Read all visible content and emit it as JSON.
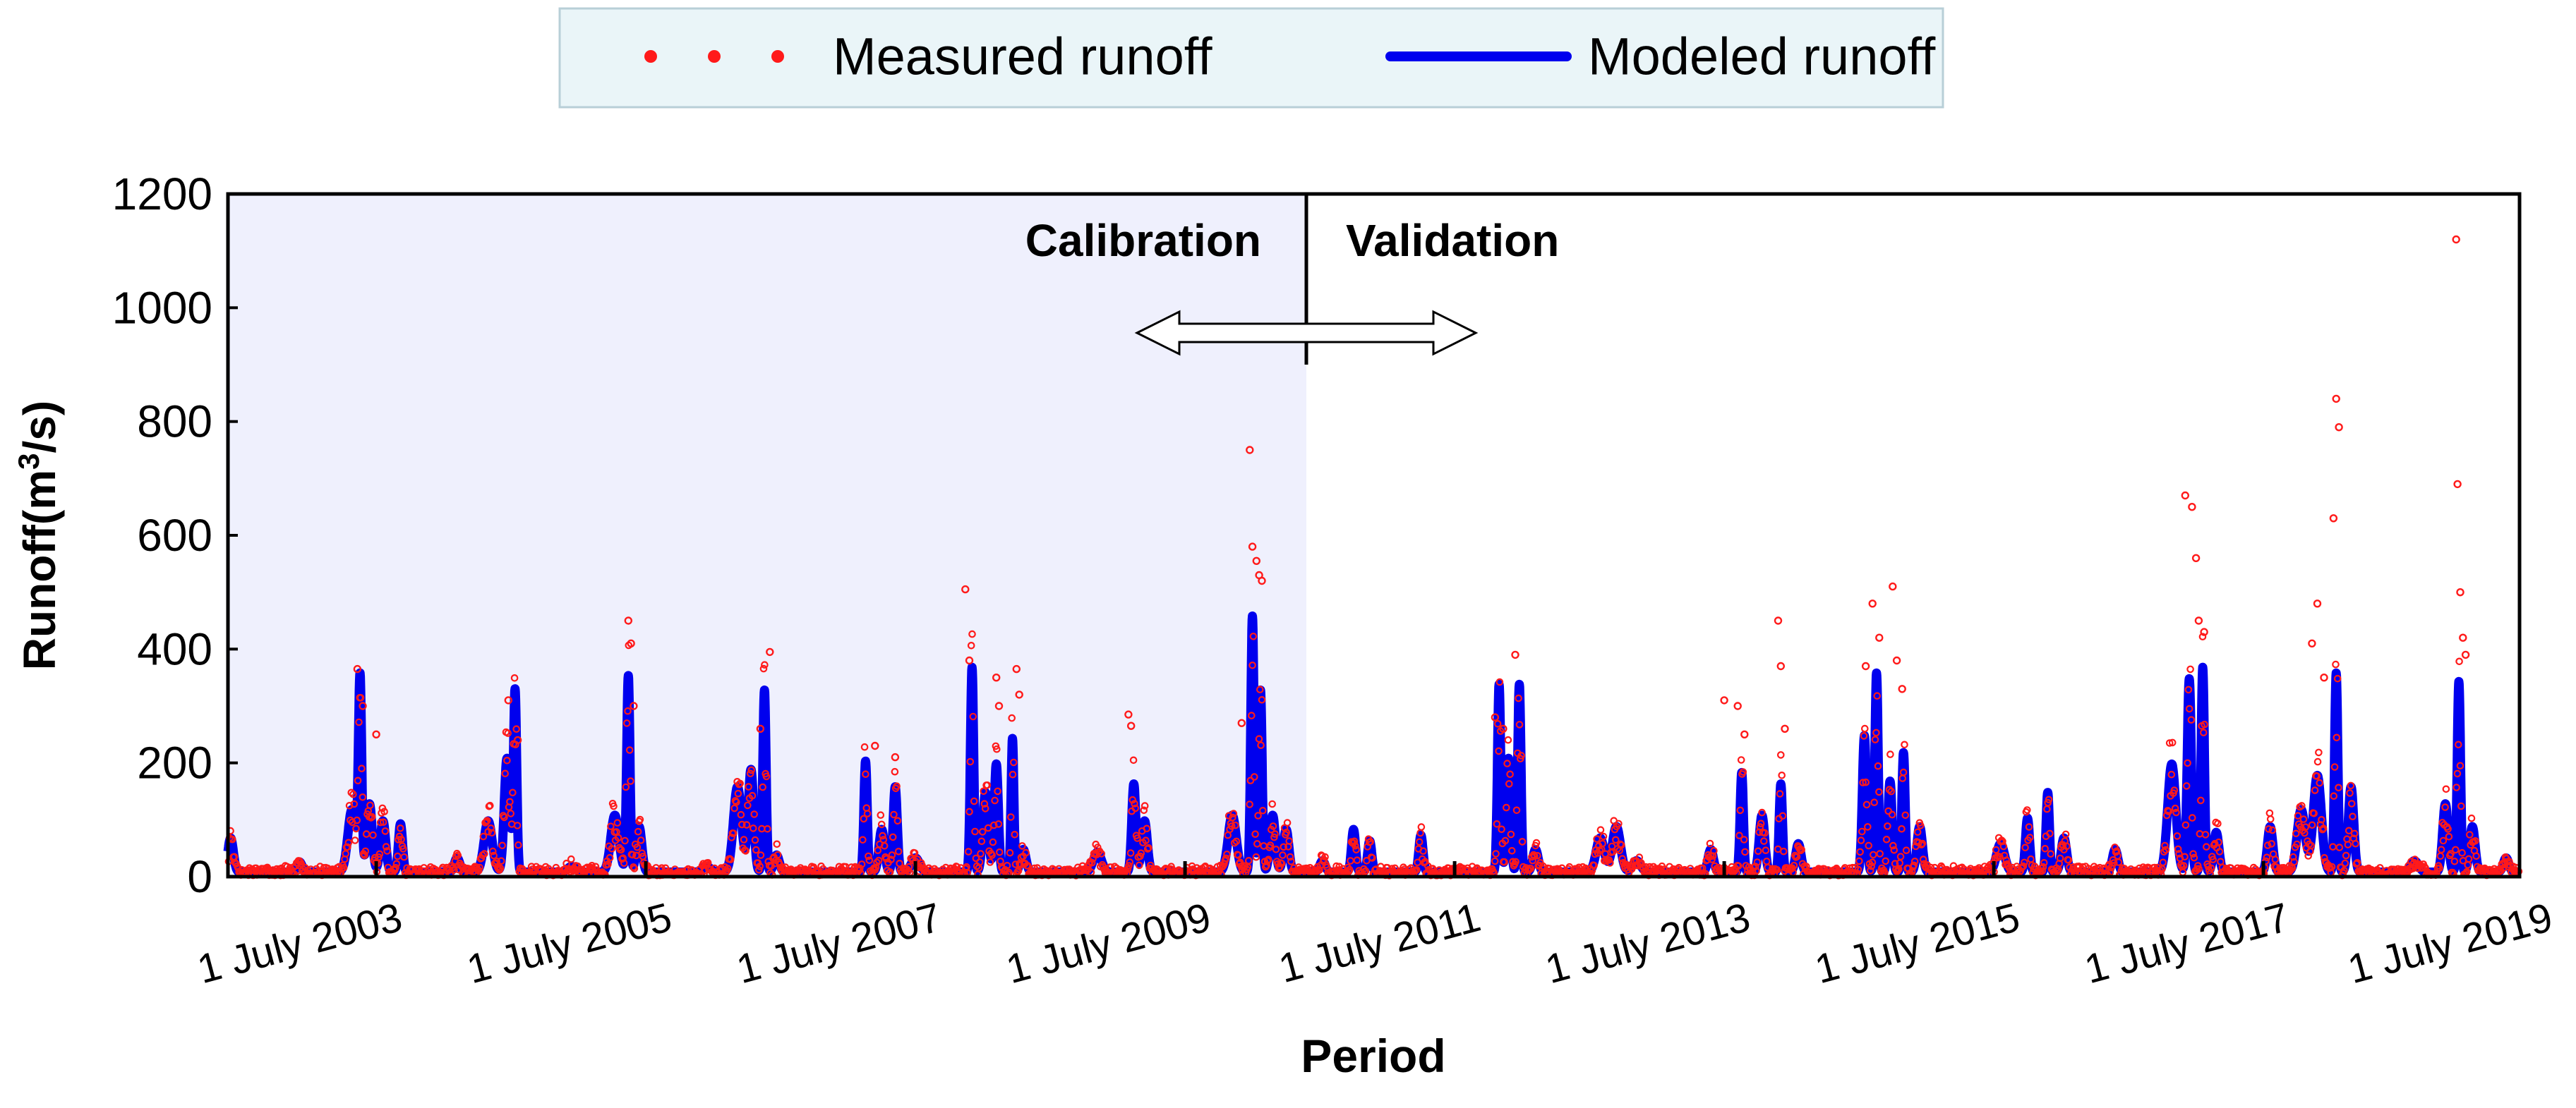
{
  "chart_data": {
    "type": "line",
    "title": "",
    "xlabel": "Period",
    "ylabel": "Runoff(m3/s)",
    "ylabel_parts": {
      "pre": "Runoff(m",
      "sup": "3",
      "post": "/s)"
    },
    "ylim": [
      0,
      1200
    ],
    "yticks": [
      "0",
      "200",
      "400",
      "600",
      "800",
      "1000",
      "1200"
    ],
    "xlim": [
      2002.4,
      2019.4
    ],
    "xticks": [
      {
        "x": 2003.5,
        "label": "1 July 2003"
      },
      {
        "x": 2005.5,
        "label": "1 July 2005"
      },
      {
        "x": 2007.5,
        "label": "1 July 2007"
      },
      {
        "x": 2009.5,
        "label": "1 July 2009"
      },
      {
        "x": 2011.5,
        "label": "1 July 2011"
      },
      {
        "x": 2013.5,
        "label": "1 July 2013"
      },
      {
        "x": 2015.5,
        "label": "1 July 2015"
      },
      {
        "x": 2017.5,
        "label": "1 July 2017"
      },
      {
        "x": 2019.5,
        "label": "1 July 2019"
      }
    ],
    "split_x": 2010.4,
    "annotations": {
      "calibration": "Calibration",
      "validation": "Validation"
    },
    "legend": {
      "placement": "top-center",
      "measured": "Measured runoff",
      "modeled": "Modeled runoff"
    },
    "colors": {
      "measured": "#ff1a1a",
      "modeled": "#0000ee",
      "calibration_bg": "#eff0fd",
      "legend_bg": "#eaf5f8",
      "legend_border": "#b8cfd7"
    },
    "baseline": 8,
    "series": [
      {
        "name": "Modeled runoff",
        "type": "line",
        "peaks": [
          [
            2002.42,
            60,
            0.02
          ],
          [
            2002.93,
            18,
            0.02
          ],
          [
            2003.32,
            110,
            0.03
          ],
          [
            2003.38,
            335,
            0.012
          ],
          [
            2003.45,
            120,
            0.02
          ],
          [
            2003.55,
            90,
            0.02
          ],
          [
            2003.68,
            85,
            0.015
          ],
          [
            2004.1,
            25,
            0.02
          ],
          [
            2004.33,
            90,
            0.03
          ],
          [
            2004.47,
            200,
            0.02
          ],
          [
            2004.53,
            320,
            0.012
          ],
          [
            2004.95,
            10,
            0.03
          ],
          [
            2005.27,
            100,
            0.03
          ],
          [
            2005.37,
            345,
            0.012
          ],
          [
            2005.45,
            80,
            0.02
          ],
          [
            2005.95,
            10,
            0.03
          ],
          [
            2006.18,
            150,
            0.03
          ],
          [
            2006.28,
            180,
            0.02
          ],
          [
            2006.38,
            320,
            0.012
          ],
          [
            2006.47,
            30,
            0.02
          ],
          [
            2007.13,
            195,
            0.012
          ],
          [
            2007.25,
            75,
            0.02
          ],
          [
            2007.35,
            150,
            0.015
          ],
          [
            2007.5,
            25,
            0.03
          ],
          [
            2007.92,
            360,
            0.012
          ],
          [
            2008.02,
            140,
            0.02
          ],
          [
            2008.1,
            190,
            0.015
          ],
          [
            2008.22,
            235,
            0.01
          ],
          [
            2008.3,
            40,
            0.02
          ],
          [
            2008.85,
            35,
            0.03
          ],
          [
            2009.12,
            155,
            0.015
          ],
          [
            2009.2,
            90,
            0.02
          ],
          [
            2009.85,
            100,
            0.03
          ],
          [
            2010.0,
            450,
            0.012
          ],
          [
            2010.06,
            320,
            0.012
          ],
          [
            2010.15,
            100,
            0.02
          ],
          [
            2010.25,
            75,
            0.02
          ],
          [
            2010.52,
            20,
            0.02
          ],
          [
            2010.75,
            75,
            0.015
          ],
          [
            2010.87,
            55,
            0.015
          ],
          [
            2011.25,
            65,
            0.015
          ],
          [
            2011.83,
            330,
            0.012
          ],
          [
            2011.9,
            200,
            0.015
          ],
          [
            2011.98,
            330,
            0.012
          ],
          [
            2012.1,
            40,
            0.02
          ],
          [
            2012.58,
            60,
            0.03
          ],
          [
            2012.7,
            80,
            0.03
          ],
          [
            2012.85,
            20,
            0.03
          ],
          [
            2013.4,
            40,
            0.02
          ],
          [
            2013.63,
            175,
            0.012
          ],
          [
            2013.78,
            100,
            0.02
          ],
          [
            2013.92,
            155,
            0.012
          ],
          [
            2014.05,
            50,
            0.02
          ],
          [
            2014.54,
            240,
            0.015
          ],
          [
            2014.63,
            350,
            0.012
          ],
          [
            2014.73,
            160,
            0.015
          ],
          [
            2014.83,
            210,
            0.012
          ],
          [
            2014.95,
            80,
            0.02
          ],
          [
            2015.55,
            50,
            0.03
          ],
          [
            2015.75,
            95,
            0.015
          ],
          [
            2015.9,
            140,
            0.012
          ],
          [
            2016.02,
            60,
            0.02
          ],
          [
            2016.4,
            40,
            0.02
          ],
          [
            2016.82,
            190,
            0.03
          ],
          [
            2016.95,
            340,
            0.015
          ],
          [
            2017.05,
            360,
            0.012
          ],
          [
            2017.15,
            70,
            0.02
          ],
          [
            2017.55,
            80,
            0.02
          ],
          [
            2017.78,
            110,
            0.03
          ],
          [
            2017.9,
            170,
            0.03
          ],
          [
            2018.04,
            350,
            0.012
          ],
          [
            2018.15,
            150,
            0.02
          ],
          [
            2018.62,
            20,
            0.03
          ],
          [
            2018.85,
            120,
            0.02
          ],
          [
            2018.95,
            335,
            0.012
          ],
          [
            2019.05,
            80,
            0.02
          ],
          [
            2019.3,
            25,
            0.02
          ]
        ]
      },
      {
        "name": "Measured runoff",
        "type": "scatter",
        "outliers": [
          [
            2003.36,
            365
          ],
          [
            2003.4,
            300
          ],
          [
            2003.5,
            250
          ],
          [
            2004.48,
            310
          ],
          [
            2004.55,
            240
          ],
          [
            2005.37,
            450
          ],
          [
            2005.39,
            410
          ],
          [
            2005.41,
            300
          ],
          [
            2006.42,
            395
          ],
          [
            2006.35,
            260
          ],
          [
            2007.2,
            230
          ],
          [
            2007.35,
            210
          ],
          [
            2007.87,
            505
          ],
          [
            2007.9,
            380
          ],
          [
            2008.1,
            350
          ],
          [
            2008.12,
            300
          ],
          [
            2008.25,
            365
          ],
          [
            2008.27,
            320
          ],
          [
            2009.08,
            285
          ],
          [
            2009.1,
            265
          ],
          [
            2009.92,
            270
          ],
          [
            2009.98,
            750
          ],
          [
            2010.0,
            580
          ],
          [
            2010.03,
            555
          ],
          [
            2010.05,
            530
          ],
          [
            2010.07,
            520
          ],
          [
            2011.95,
            390
          ],
          [
            2011.8,
            280
          ],
          [
            2011.86,
            260
          ],
          [
            2013.5,
            310
          ],
          [
            2013.6,
            300
          ],
          [
            2013.65,
            250
          ],
          [
            2013.9,
            450
          ],
          [
            2013.92,
            370
          ],
          [
            2013.95,
            260
          ],
          [
            2014.55,
            370
          ],
          [
            2014.6,
            480
          ],
          [
            2014.65,
            420
          ],
          [
            2014.75,
            510
          ],
          [
            2014.78,
            380
          ],
          [
            2014.82,
            330
          ],
          [
            2016.92,
            670
          ],
          [
            2016.97,
            650
          ],
          [
            2017.0,
            560
          ],
          [
            2017.02,
            450
          ],
          [
            2017.06,
            430
          ],
          [
            2017.86,
            410
          ],
          [
            2017.9,
            480
          ],
          [
            2017.95,
            350
          ],
          [
            2018.04,
            840
          ],
          [
            2018.06,
            790
          ],
          [
            2018.02,
            630
          ],
          [
            2018.93,
            1120
          ],
          [
            2018.94,
            690
          ],
          [
            2018.96,
            500
          ],
          [
            2018.98,
            420
          ],
          [
            2019.0,
            390
          ]
        ]
      }
    ]
  }
}
